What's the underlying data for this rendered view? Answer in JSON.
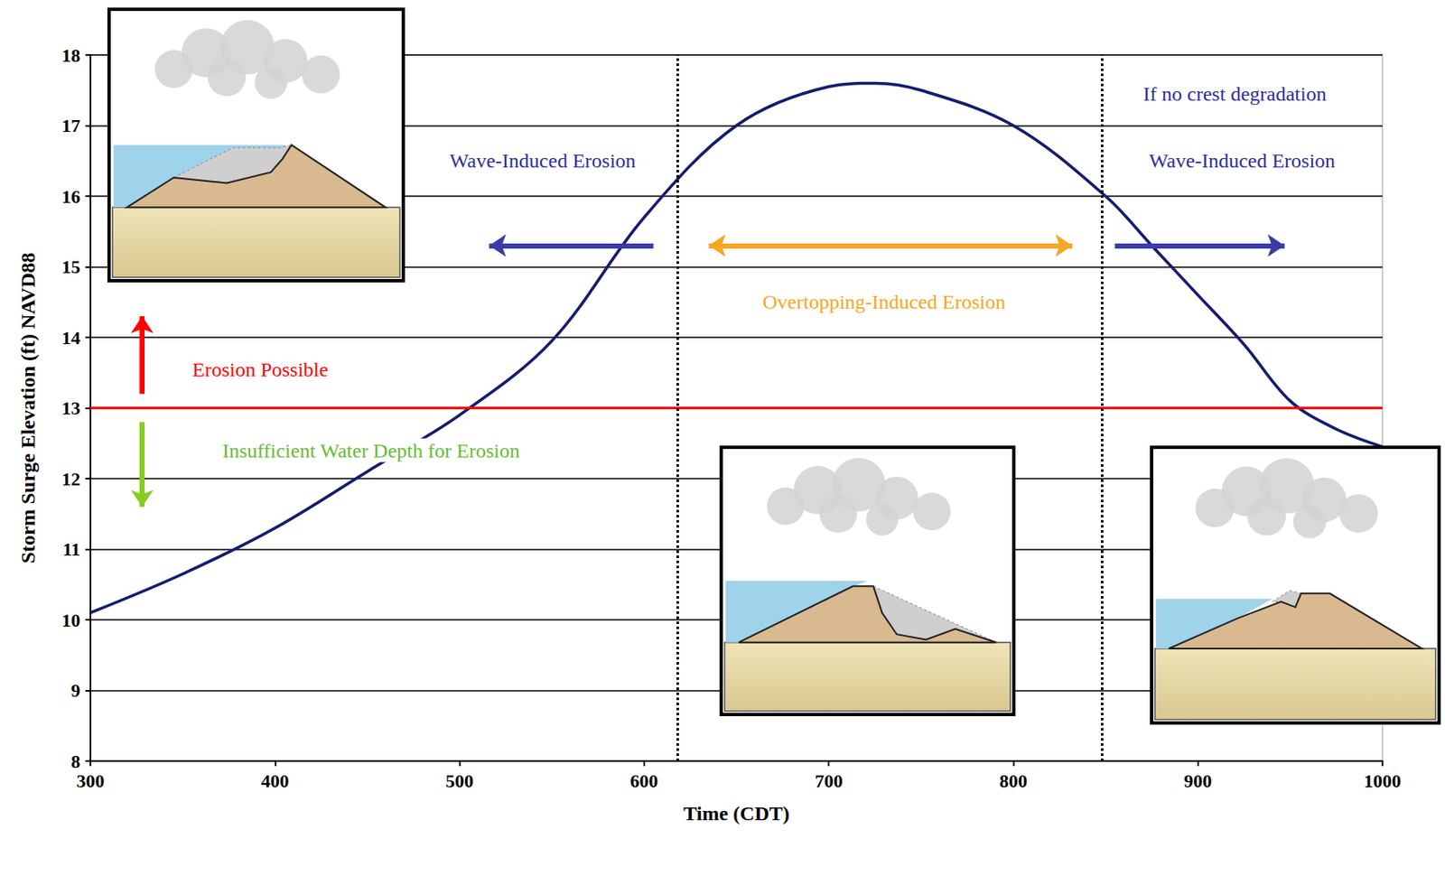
{
  "chart_data": {
    "type": "line",
    "x_label": "Time (CDT)",
    "y_label": "Storm Surge Elevation (ft) NAVD88",
    "x": [
      300,
      350,
      400,
      450,
      500,
      550,
      600,
      650,
      700,
      725,
      750,
      800,
      850,
      875,
      900,
      925,
      950,
      975,
      1000
    ],
    "values": [
      10.1,
      10.65,
      11.3,
      12.1,
      12.9,
      13.95,
      15.7,
      17.0,
      17.55,
      17.6,
      17.5,
      17.0,
      16.0,
      15.3,
      14.6,
      13.9,
      13.1,
      12.7,
      12.45
    ],
    "color": "#141c6e",
    "xlim": [
      300,
      1000
    ],
    "xticks": [
      300,
      400,
      500,
      600,
      700,
      800,
      900,
      1000
    ],
    "ylim": [
      8,
      18
    ],
    "yticks": [
      8,
      9,
      10,
      11,
      12,
      13,
      14,
      15,
      16,
      17,
      18
    ],
    "grid": true,
    "threshold": {
      "value": 13,
      "color": "#ff0000"
    },
    "vlines": {
      "values": [
        618,
        848
      ],
      "line_style": "dotted",
      "color": "#000000"
    },
    "annotations": [
      {
        "text": "Wave-Induced Erosion",
        "x": 545,
        "y": 16.5,
        "color": "#2e2e99"
      },
      {
        "text": "If no crest degradation",
        "x": 920,
        "y": 17.45,
        "color": "#2e2e99"
      },
      {
        "text": "Wave-Induced Erosion",
        "x": 924,
        "y": 16.5,
        "color": "#2e2e99"
      },
      {
        "text": "Overtopping-Induced Erosion",
        "x": 730,
        "y": 14.5,
        "color": "#f5a623"
      },
      {
        "text": "Erosion Possible",
        "x": 392,
        "y": 13.55,
        "color": "#ff0000"
      },
      {
        "text": "Insufficient Water Depth for Erosion",
        "x": 452,
        "y": 12.4,
        "color": "#66bb33"
      }
    ],
    "arrows": [
      {
        "from": [
          605,
          15.3
        ],
        "to": [
          516,
          15.3
        ],
        "color": "#3b3ba8",
        "marker": "arrow"
      },
      {
        "from": [
          635,
          15.3
        ],
        "to": [
          832,
          15.3
        ],
        "color": "#f5a623",
        "marker": "double_arrow"
      },
      {
        "from": [
          855,
          15.3
        ],
        "to": [
          947,
          15.3
        ],
        "color": "#3b3ba8",
        "marker": "arrow"
      },
      {
        "from": [
          328,
          13.2
        ],
        "to": [
          328,
          14.3
        ],
        "color": "#ff0000",
        "marker": "arrow"
      },
      {
        "from": [
          328,
          12.8
        ],
        "to": [
          328,
          11.6
        ],
        "color": "#88cc22",
        "marker": "arrow"
      }
    ]
  }
}
